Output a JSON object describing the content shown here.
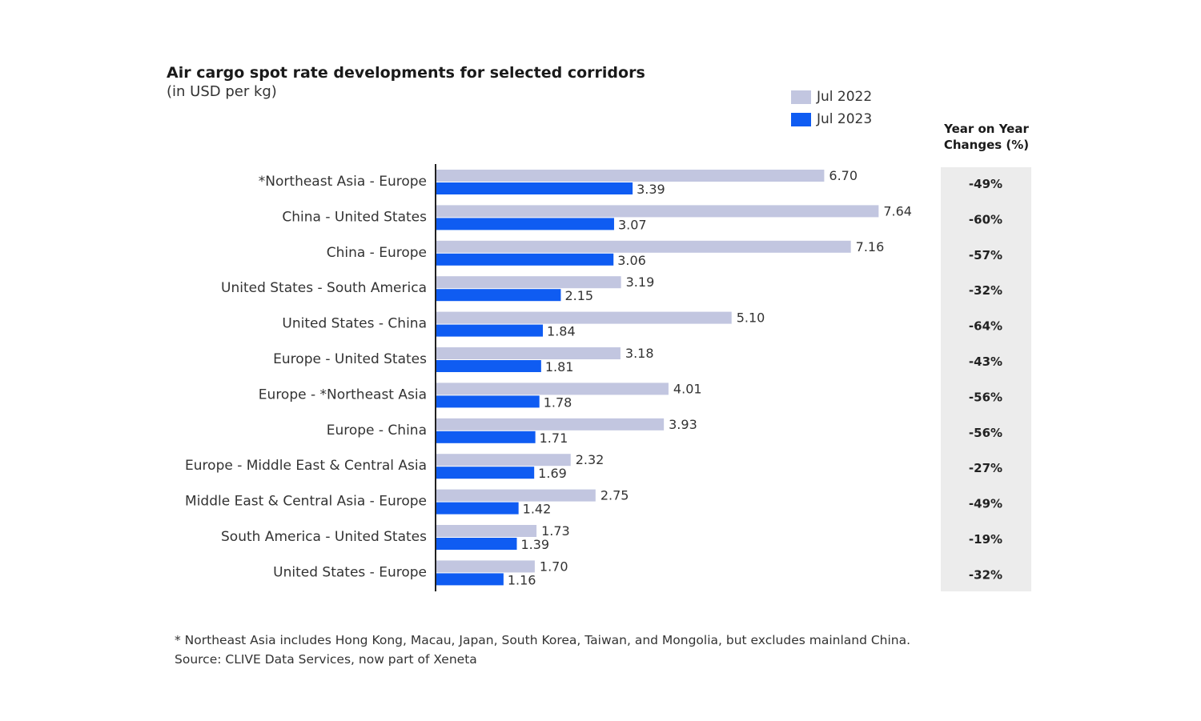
{
  "chart_data": {
    "type": "bar",
    "orientation": "horizontal",
    "title": "Air cargo spot rate developments for selected corridors",
    "subtitle": "(in USD per kg)",
    "categories": [
      "*Northeast Asia - Europe",
      "China - United States",
      "China - Europe",
      "United States - South America",
      "United States - China",
      "Europe - United States",
      "Europe - *Northeast Asia",
      "Europe - China",
      "Europe - Middle East & Central Asia",
      "Middle East & Central Asia - Europe",
      "South America - United States",
      "United States - Europe"
    ],
    "series": [
      {
        "name": "Jul 2022",
        "color": "#c2c6e0",
        "values": [
          6.7,
          7.64,
          7.16,
          3.19,
          5.1,
          3.18,
          4.01,
          3.93,
          2.32,
          2.75,
          1.73,
          1.7
        ]
      },
      {
        "name": "Jul 2023",
        "color": "#0f5cf2",
        "values": [
          3.39,
          3.07,
          3.06,
          2.15,
          1.84,
          1.81,
          1.78,
          1.71,
          1.69,
          1.42,
          1.39,
          1.16
        ]
      }
    ],
    "value_labels": {
      "Jul 2022": [
        "6.70",
        "7.64",
        "7.16",
        "3.19",
        "5.10",
        "3.18",
        "4.01",
        "3.93",
        "2.32",
        "2.75",
        "1.73",
        "1.70"
      ],
      "Jul 2023": [
        "3.39",
        "3.07",
        "3.06",
        "2.15",
        "1.84",
        "1.81",
        "1.78",
        "1.71",
        "1.69",
        "1.42",
        "1.39",
        "1.16"
      ]
    },
    "yoy_header": [
      "Year on Year",
      "Changes (%)"
    ],
    "yoy_changes": [
      "-49%",
      "-60%",
      "-57%",
      "-32%",
      "-64%",
      "-43%",
      "-56%",
      "-56%",
      "-27%",
      "-49%",
      "-19%",
      "-32%"
    ],
    "xlim": [
      0,
      8
    ],
    "grid": false,
    "legend_position": "top-right"
  },
  "footnote": "* Northeast Asia includes Hong Kong, Macau, Japan, South Korea, Taiwan, and Mongolia, but excludes mainland China.",
  "source": "Source: CLIVE Data Services, now part of Xeneta"
}
